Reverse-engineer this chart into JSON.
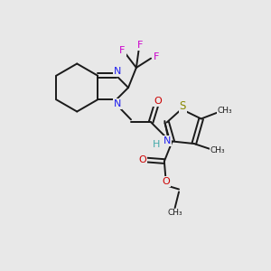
{
  "bg_color": "#e8e8e8",
  "bond_color": "#1a1a1a",
  "N_color": "#2020ee",
  "O_color": "#cc0000",
  "S_color": "#888800",
  "F_color": "#cc00cc",
  "H_color": "#44aaaa",
  "font_size": 8.0,
  "bond_lw": 1.4,
  "xlim": [
    0,
    10
  ],
  "ylim": [
    0,
    10
  ]
}
